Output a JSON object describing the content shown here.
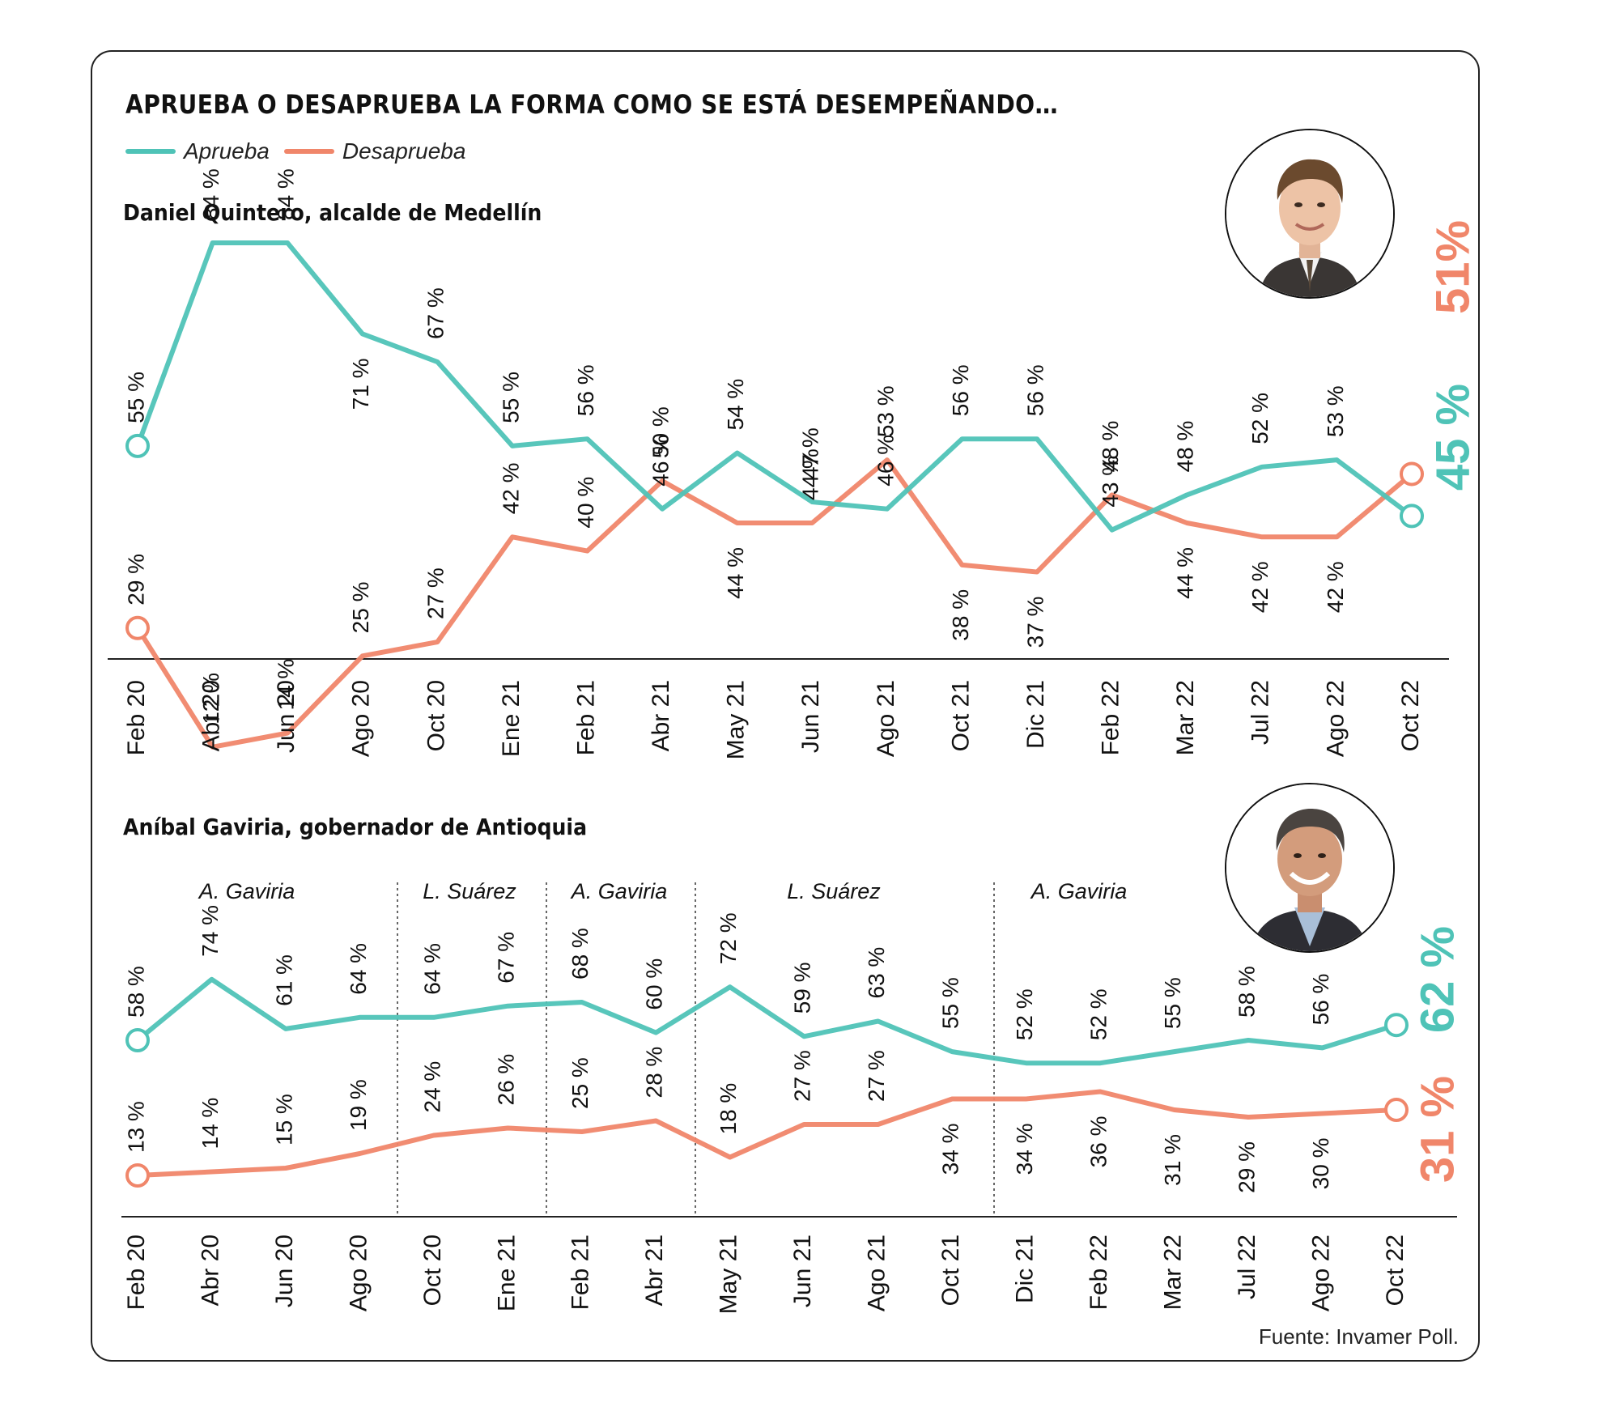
{
  "title": "APRUEBA O DESAPRUEBA LA FORMA COMO SE ESTÁ DESEMPEÑANDO…",
  "legend": {
    "approve": "Aprueba",
    "disapprove": "Desaprueba"
  },
  "source": "Fuente: Invamer Poll.",
  "colors": {
    "approve": "#4fc3b7",
    "disapprove": "#f0866a",
    "axis": "#222222",
    "text": "#111111"
  },
  "chart_data": [
    {
      "type": "line",
      "subtitle": "Daniel Quintero, alcalde de Medellín",
      "categories": [
        "Feb 20",
        "Abr 20",
        "Jun 20",
        "Ago 20",
        "Oct 20",
        "Ene 21",
        "Feb 21",
        "Abr 21",
        "May 21",
        "Jun 21",
        "Ago 21",
        "Oct 21",
        "Dic 21",
        "Feb 22",
        "Mar 22",
        "Jul 22",
        "Ago 22",
        "Oct 22"
      ],
      "series": [
        {
          "name": "Aprueba",
          "values": [
            55,
            84,
            84,
            71,
            67,
            55,
            56,
            46,
            54,
            47,
            46,
            56,
            56,
            43,
            48,
            52,
            53,
            45
          ]
        },
        {
          "name": "Desaprueba",
          "values": [
            29,
            12,
            14,
            25,
            27,
            42,
            40,
            50,
            44,
            44,
            53,
            38,
            37,
            48,
            44,
            42,
            42,
            51
          ]
        }
      ],
      "value_labels": {
        "approve": [
          "55 %",
          "84 %",
          "84 %",
          "71 %",
          "67 %",
          "55 %",
          "56 %",
          "46 %",
          "54 %",
          "47 %",
          "46 %",
          "56 %",
          "56 %",
          "43 %",
          "48 %",
          "52 %",
          "53 %"
        ],
        "disapprove": [
          "29 %",
          "12 %",
          "14 %",
          "25 %",
          "27 %",
          "42 %",
          "40 %",
          "50 %",
          "44 %",
          "44 %",
          "53 %",
          "38 %",
          "37 %",
          "48 %",
          "44 %",
          "42 %",
          "42 %"
        ]
      },
      "final_labels": {
        "approve": "45 %",
        "disapprove": "51%"
      }
    },
    {
      "type": "line",
      "subtitle": "Aníbal Gaviria, gobernador de Antioquia",
      "categories": [
        "Feb 20",
        "Abr 20",
        "Jun 20",
        "Ago 20",
        "Oct 20",
        "Ene 21",
        "Feb 21",
        "Abr 21",
        "May 21",
        "Jun 21",
        "Ago 21",
        "Oct 21",
        "Dic 21",
        "Feb 22",
        "Mar 22",
        "Jul 22",
        "Ago 22",
        "Oct 22"
      ],
      "series": [
        {
          "name": "Aprueba",
          "values": [
            58,
            74,
            61,
            64,
            64,
            67,
            68,
            60,
            72,
            59,
            63,
            55,
            52,
            52,
            55,
            58,
            56,
            62
          ]
        },
        {
          "name": "Desaprueba",
          "values": [
            13,
            14,
            15,
            19,
            24,
            26,
            25,
            28,
            18,
            27,
            27,
            34,
            34,
            36,
            31,
            29,
            30,
            31
          ]
        }
      ],
      "value_labels": {
        "approve": [
          "58 %",
          "74 %",
          "61 %",
          "64 %",
          "64 %",
          "67 %",
          "68 %",
          "60 %",
          "72 %",
          "59 %",
          "63 %",
          "55 %",
          "52 %",
          "52 %",
          "55 %",
          "58 %",
          "56 %"
        ],
        "disapprove": [
          "13 %",
          "14 %",
          "15 %",
          "19 %",
          "24 %",
          "26 %",
          "25 %",
          "28 %",
          "18 %",
          "27 %",
          "27 %",
          "34 %",
          "34 %",
          "36 %",
          "31 %",
          "29 %",
          "30 %"
        ]
      },
      "final_labels": {
        "approve": "62 %",
        "disapprove": "31 %"
      },
      "periods": [
        "A. Gaviria",
        "L. Suárez",
        "A. Gaviria",
        "L. Suárez",
        "A. Gaviria"
      ]
    }
  ]
}
